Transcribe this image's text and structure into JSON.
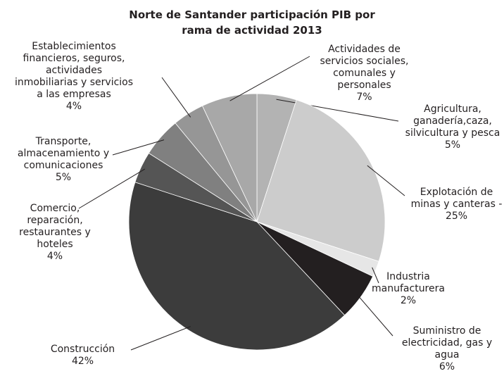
{
  "chart_data": {
    "type": "pie",
    "title": "Norte de Santander participación PIB por rama de actividad 2013",
    "categories": [
      "Agricultura, ganadería,caza, silvicultura y pesca",
      "Explotación de minas y canteras",
      "Industria manufacturera",
      "Suministro de electricidad, gas y agua",
      "Construcción",
      "Comercio, reparación, restaurantes y hoteles",
      "Transporte, almacenamiento y comunicaciones",
      "Establecimientos financieros, seguros, actividades inmobiliarias y servicios a las empresas",
      "Actividades de servicios sociales, comunales y personales"
    ],
    "values": [
      5,
      25,
      2,
      6,
      42,
      4,
      5,
      4,
      7
    ],
    "value_labels": [
      "5%",
      "- 25%",
      "2%",
      "6%",
      "42%",
      "4%",
      "5%",
      "4%",
      "7%"
    ],
    "colors": [
      "#b3b3b3",
      "#cccccc",
      "#e6e6e6",
      "#231f20",
      "#3c3c3c",
      "#555555",
      "#808080",
      "#969696",
      "#a8a8a8"
    ]
  }
}
